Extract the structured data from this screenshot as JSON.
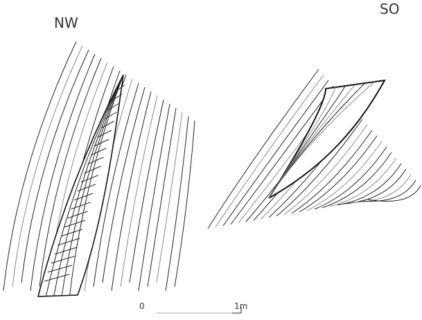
{
  "labels": {
    "left": "NW",
    "right": "SO"
  },
  "scale": {
    "start": "0",
    "end": "1m"
  }
}
